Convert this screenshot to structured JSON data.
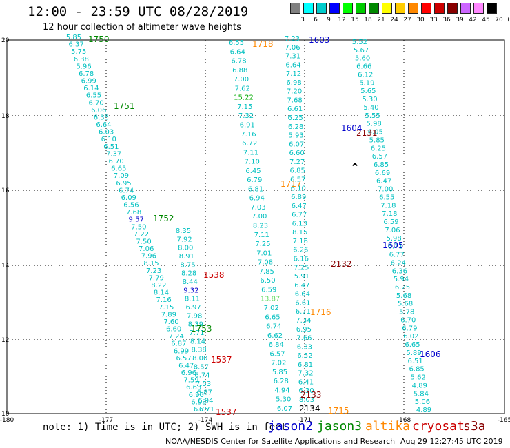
{
  "header": {
    "title": "12:00 - 23:59 UTC 08/28/2019",
    "subtitle": "12 hour collection of altimeter wave heights"
  },
  "legend": {
    "colors": [
      "#808080",
      "#00ffff",
      "#00cccc",
      "#0000ff",
      "#00ff00",
      "#00cc00",
      "#008800",
      "#ffff00",
      "#ffcc00",
      "#ff8800",
      "#ff0000",
      "#cc0000",
      "#880000",
      "#cc66ff",
      "#ff88ff",
      "#000000"
    ],
    "labels": [
      "3",
      "6",
      "9",
      "12",
      "15",
      "18",
      "21",
      "24",
      "27",
      "30",
      "33",
      "36",
      "39",
      "42",
      "45",
      "70",
      "(ft)"
    ]
  },
  "axes": {
    "x_ticks": [
      "-180",
      "-177",
      "-174",
      "-171",
      "-168",
      "-165"
    ],
    "y_ticks": [
      "20",
      "18",
      "16",
      "14",
      "12",
      "10"
    ]
  },
  "tracks": [
    {
      "id": "t1",
      "color": "#00c0c0",
      "values": [
        "5.85",
        "6.37",
        "5.75",
        "6.38",
        "5.96",
        "6.78",
        "6.99",
        "6.14",
        "6.55",
        "6.70",
        "6.06",
        "6.35",
        "6.64",
        "6.03",
        "6.10",
        "6.51",
        "7.37",
        "6.70",
        "6.65",
        "7.09",
        "6.95",
        "6.74",
        "6.09",
        "6.56",
        "7.68",
        "9.57",
        "7.50",
        "7.22",
        "7.50",
        "7.06",
        "7.96",
        "8.15",
        "7.23",
        "7.79",
        "8.22",
        "8.14",
        "7.16",
        "7.15",
        "7.89",
        "7.60",
        "6.60",
        "7.24",
        "6.87",
        "6.99",
        "6.57",
        "6.47",
        "6.96",
        "7.59",
        "6.63",
        "6.90",
        "6.93",
        "6.75"
      ]
    },
    {
      "id": "t2",
      "color": "#00c0c0",
      "values": [
        "8.35",
        "7.92",
        "8.00",
        "8.91",
        "8.75",
        "8.28",
        "8.44",
        "9.32",
        "8.11",
        "6.97",
        "7.98",
        "8.39",
        "7.71",
        "8.14",
        "8.38",
        "8.00",
        "8.57",
        "6.74",
        "7.53",
        "6.87",
        "6.94",
        "6.71"
      ]
    },
    {
      "id": "t3",
      "color": "#00c0c0",
      "values": [
        "6.55",
        "6.64",
        "6.78",
        "6.88",
        "7.00",
        "7.62",
        "15.22",
        "7.15",
        "7.32",
        "6.91",
        "7.16",
        "6.72",
        "7.11",
        "7.10",
        "6.45",
        "6.79",
        "6.81",
        "6.94",
        "7.03",
        "7.00",
        "8.23",
        "7.11",
        "7.25",
        "7.01",
        "7.08",
        "7.85",
        "6.50",
        "6.59",
        "13.87",
        "7.02",
        "6.65",
        "6.74",
        "6.62",
        "6.84",
        "6.57",
        "7.02",
        "5.85",
        "6.28",
        "4.94",
        "5.30",
        "6.07"
      ]
    },
    {
      "id": "t4",
      "color": "#00c0c0",
      "values": [
        "7.23",
        "7.06",
        "7.31",
        "6.64",
        "7.12",
        "6.98",
        "7.20",
        "7.68",
        "6.61",
        "6.25",
        "6.28",
        "5.93",
        "6.07",
        "6.60",
        "7.27",
        "6.85",
        "6.57",
        "6.10",
        "6.89",
        "6.47",
        "6.77",
        "6.13",
        "8.15",
        "7.16",
        "6.26",
        "6.16",
        "7.25",
        "5.91",
        "6.47",
        "6.64",
        "6.61",
        "6.71",
        "7.34",
        "6.95",
        "7.66",
        "6.33",
        "6.52",
        "6.81",
        "7.32",
        "6.41",
        "6.30",
        "8.03"
      ]
    },
    {
      "id": "t5",
      "color": "#00c0c0",
      "values": [
        "5.52",
        "5.67",
        "5.60",
        "6.66",
        "6.12",
        "5.19",
        "5.65",
        "5.30",
        "5.40",
        "5.55",
        "5.98",
        "6.05",
        "5.85",
        "6.25",
        "6.57",
        "6.85",
        "6.69",
        "6.47",
        "7.00",
        "6.55",
        "7.18",
        "7.18",
        "6.59",
        "7.06",
        "5.98",
        "6.71",
        "6.77",
        "6.24",
        "6.36",
        "5.94",
        "6.25",
        "5.68",
        "5.68",
        "5.78",
        "6.70",
        "6.79",
        "6.02",
        "6.65",
        "5.89",
        "6.51",
        "6.85",
        "5.62",
        "4.89",
        "5.84",
        "5.06",
        "4.89"
      ]
    }
  ],
  "labels": [
    {
      "text": "1750",
      "color": "#008800"
    },
    {
      "text": "1751",
      "color": "#008800"
    },
    {
      "text": "1752",
      "color": "#008800"
    },
    {
      "text": "1753",
      "color": "#008800"
    },
    {
      "text": "1538",
      "color": "#cc0000"
    },
    {
      "text": "1537",
      "color": "#cc0000"
    },
    {
      "text": "1537",
      "color": "#cc0000"
    },
    {
      "text": "1718",
      "color": "#ff8800"
    },
    {
      "text": "1717",
      "color": "#ff8800"
    },
    {
      "text": "1716",
      "color": "#ff8800"
    },
    {
      "text": "1715",
      "color": "#ff8800"
    },
    {
      "text": "1603",
      "color": "#0000cc"
    },
    {
      "text": "1604",
      "color": "#0000cc"
    },
    {
      "text": "1605",
      "color": "#0000cc"
    },
    {
      "text": "1606",
      "color": "#0000cc"
    },
    {
      "text": "2131",
      "color": "#880000"
    },
    {
      "text": "2132",
      "color": "#880000"
    },
    {
      "text": "2133",
      "color": "#880000"
    },
    {
      "text": "2134",
      "color": "#000000"
    }
  ],
  "footer": {
    "note": "note: 1) Time is in UTC; 2) SWH is in feet",
    "missions": [
      {
        "name": "jason2",
        "color": "#0000cc"
      },
      {
        "name": "jason3",
        "color": "#008800"
      },
      {
        "name": "altika",
        "color": "#ff8800"
      },
      {
        "name": "cryosat",
        "color": "#cc0000"
      },
      {
        "name": "s3a",
        "color": "#880000"
      }
    ],
    "credit": "NOAA/NESDIS Center for Satellite Applications and Research",
    "stamp": "Aug 29 12:27:45 UTC 2019"
  }
}
